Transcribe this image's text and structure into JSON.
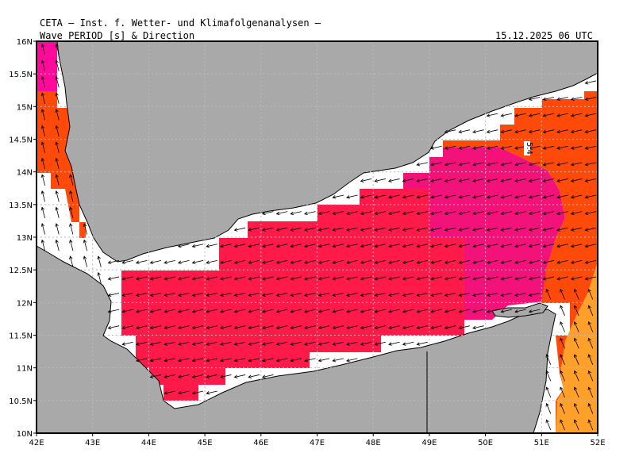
{
  "header": {
    "institute": "CETA — Inst. f. Wetter- und Klimafolgenanalysen —",
    "parameter": "Wave_PERIOD_[s]_&_Direction",
    "valid_time": "15.12.2025 06 UTC"
  },
  "map": {
    "lon_range": [
      42,
      52
    ],
    "lat_range": [
      10,
      16
    ],
    "x_ticks": [
      "42E",
      "43E",
      "44E",
      "45E",
      "46E",
      "47E",
      "48E",
      "49E",
      "50E",
      "51E",
      "52E"
    ],
    "y_ticks": [
      "10N",
      "10.5N",
      "11N",
      "11.5N",
      "12N",
      "12.5N",
      "13N",
      "13.5N",
      "14N",
      "14.5N",
      "15N",
      "15.5N",
      "16N"
    ],
    "contour_label": "5.4",
    "colors": {
      "land": "#a9a9a9",
      "sea": "#ffffff",
      "period_red": "#ff1a4a",
      "period_magenta": "#f2127a",
      "period_pink": "#ff0a9a",
      "period_orange": "#ff4a0a",
      "period_amber": "#ffa02a",
      "coast": "#000000",
      "grid": "#b0b0b0"
    }
  }
}
